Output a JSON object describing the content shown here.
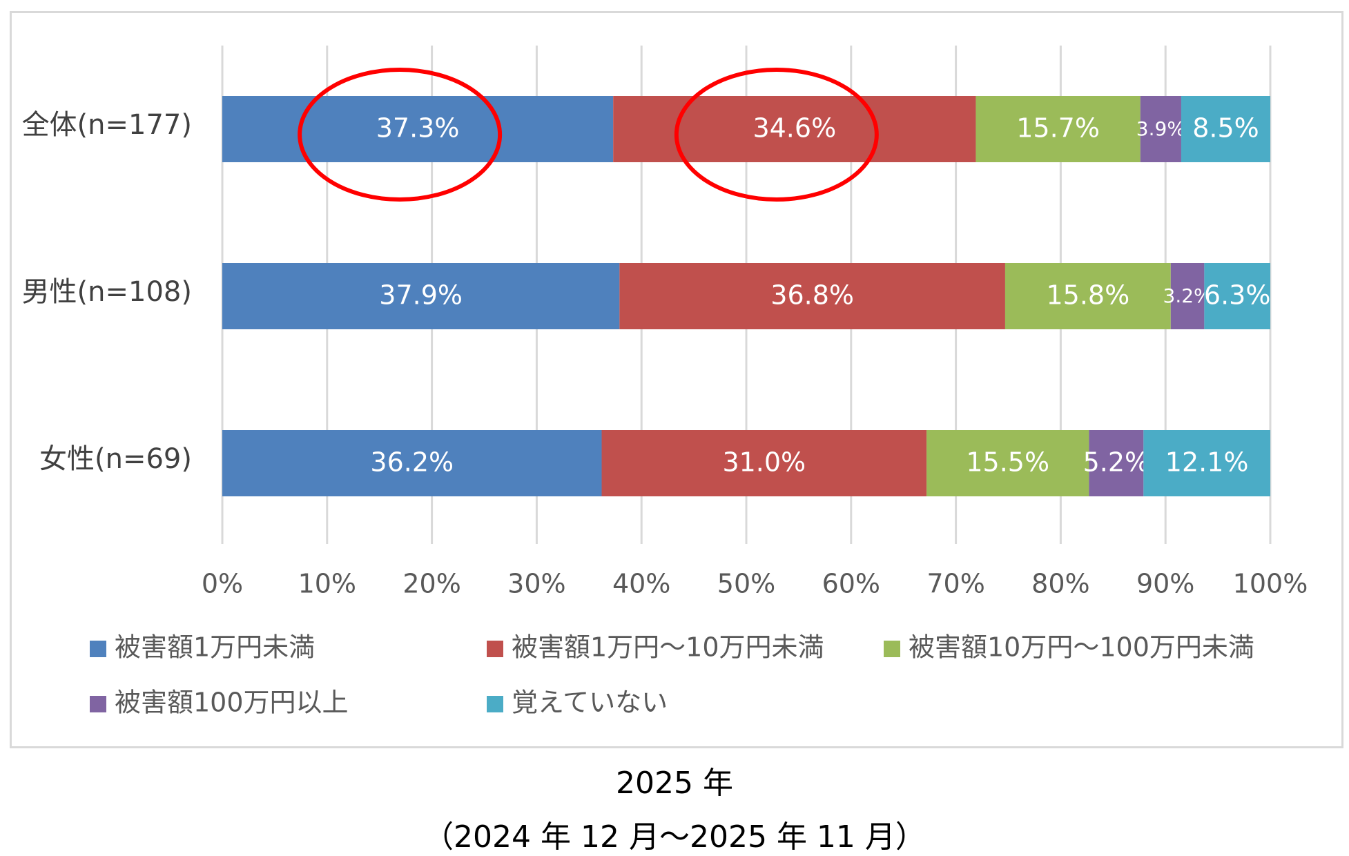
{
  "chart_data": {
    "type": "bar",
    "orientation": "horizontal",
    "stacked": true,
    "categories": [
      "全体(n=177)",
      "男性(n=108)",
      "女性(n=69)"
    ],
    "series": [
      {
        "name": "被害額1万円未満",
        "values": [
          37.3,
          37.9,
          36.2
        ],
        "labels": [
          "37.3%",
          "37.9%",
          "36.2%"
        ],
        "color": "#4f81bd"
      },
      {
        "name": "被害額1万円～10万円未満",
        "values": [
          34.6,
          36.8,
          31.0
        ],
        "labels": [
          "34.6%",
          "36.8%",
          "31.0%"
        ],
        "color": "#c0504d"
      },
      {
        "name": "被害額10万円～100万円未満",
        "values": [
          15.7,
          15.8,
          15.5
        ],
        "labels": [
          "15.7%",
          "15.8%",
          "15.5%"
        ],
        "color": "#9bbb59"
      },
      {
        "name": "被害額100万円以上",
        "values": [
          3.9,
          3.2,
          5.2
        ],
        "labels": [
          "3.9%",
          "3.2%",
          "5.2%"
        ],
        "color": "#8064a2"
      },
      {
        "name": "覚えていない",
        "values": [
          8.5,
          6.3,
          12.1
        ],
        "labels": [
          "8.5%",
          "6.3%",
          "12.1%"
        ],
        "color": "#4bacc6"
      }
    ],
    "xlim": [
      0,
      100
    ],
    "x_ticks": [
      "0%",
      "10%",
      "20%",
      "30%",
      "40%",
      "50%",
      "60%",
      "70%",
      "80%",
      "90%",
      "100%"
    ],
    "grid": "vertical",
    "legend_position": "bottom",
    "annotations": [
      {
        "type": "ellipse",
        "category": "全体(n=177)",
        "series": "被害額1万円未満",
        "color": "#ff0000"
      },
      {
        "type": "ellipse",
        "category": "全体(n=177)",
        "series": "被害額1万円～10万円未満",
        "color": "#ff0000"
      }
    ]
  },
  "caption": {
    "year": "2025 年",
    "period": "（2024 年 12 月～2025 年 11 月）"
  }
}
